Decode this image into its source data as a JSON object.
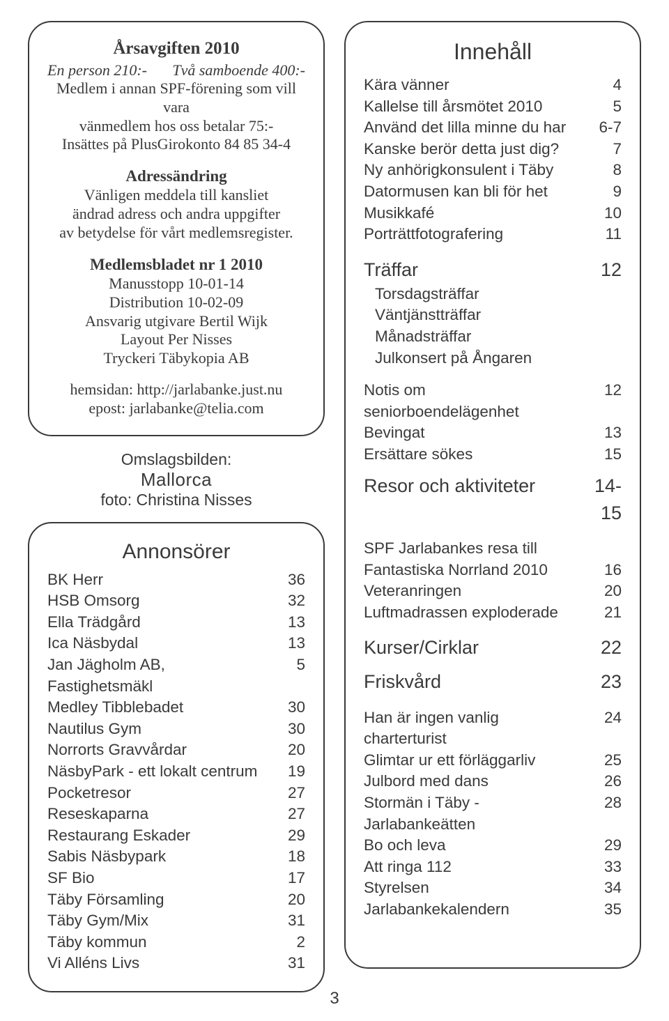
{
  "left_top": {
    "title": "Årsavgiften 2010",
    "fees": {
      "left": "En person 210:-",
      "right": "Två samboende 400:-"
    },
    "member_lines": [
      "Medlem i annan SPF-förening som vill vara",
      "vänmedlem hos oss betalar 75:-",
      "Insättes på PlusGirokonto 84 85 34-4"
    ],
    "address_title": "Adressändring",
    "address_lines": [
      "Vänligen meddela till kansliet",
      "ändrad adress och andra uppgifter",
      "av betydelse för vårt medlemsregister."
    ],
    "issue_title": "Medlemsbladet nr 1  2010",
    "issue_lines": [
      "Manusstopp 10-01-14",
      "Distribution  10-02-09",
      "Ansvarig utgivare Bertil Wijk",
      "Layout Per Nisses",
      "Tryckeri Täbykopia AB"
    ],
    "web": "hemsidan: http://jarlabanke.just.nu",
    "email": "epost: jarlabanke@telia.com"
  },
  "caption": {
    "l1": "Omslagsbilden:",
    "l2": "Mallorca",
    "l3": "foto: Christina Nisses"
  },
  "advertisers": {
    "title": "Annonsörer",
    "items": [
      {
        "label": "BK Herr",
        "page": "36"
      },
      {
        "label": "HSB Omsorg",
        "page": "32"
      },
      {
        "label": "Ella Trädgård",
        "page": "13"
      },
      {
        "label": "Ica Näsbydal",
        "page": "13"
      },
      {
        "label": "Jan Jägholm AB, Fastighetsmäkl",
        "page": "5"
      },
      {
        "label": "Medley Tibblebadet",
        "page": "30"
      },
      {
        "label": "Nautilus Gym",
        "page": "30"
      },
      {
        "label": "Norrorts Gravvårdar",
        "page": "20"
      },
      {
        "label": "NäsbyPark - ett lokalt centrum",
        "page": "19"
      },
      {
        "label": "Pocketresor",
        "page": "27"
      },
      {
        "label": "Reseskaparna",
        "page": "27"
      },
      {
        "label": "Restaurang Eskader",
        "page": "29"
      },
      {
        "label": "Sabis Näsbypark",
        "page": "18"
      },
      {
        "label": "SF Bio",
        "page": "17"
      },
      {
        "label": "Täby Församling",
        "page": "20"
      },
      {
        "label": "Täby Gym/Mix",
        "page": "31"
      },
      {
        "label": "Täby kommun",
        "page": "2"
      },
      {
        "label": "Vi Alléns Livs",
        "page": "31"
      }
    ]
  },
  "toc": {
    "title": "Innehåll",
    "section1": [
      {
        "label": "Kära vänner",
        "page": "4"
      },
      {
        "label": "Kallelse till årsmötet 2010",
        "page": "5"
      },
      {
        "label": "Använd det lilla minne du har",
        "page": "6-7"
      },
      {
        "label": "Kanske berör detta just dig?",
        "page": "7"
      },
      {
        "label": "Ny anhörigkonsulent i Täby",
        "page": "8"
      },
      {
        "label": "Datormusen kan bli för het",
        "page": "9"
      },
      {
        "label": "Musikkafé",
        "page": "10"
      },
      {
        "label": "Porträttfotografering",
        "page": "11"
      }
    ],
    "traffar_head": {
      "label": "Träffar",
      "page": "12"
    },
    "traffar_items": [
      "Torsdagsträffar",
      "Väntjänstträffar",
      "Månadsträffar",
      "Julkonsert på Ångaren"
    ],
    "section2": [
      {
        "label": "Notis om seniorboendelägenhet",
        "page": "12"
      },
      {
        "label": "Bevingat",
        "page": "13"
      },
      {
        "label": "Ersättare sökes",
        "page": "15"
      }
    ],
    "resor_head": {
      "label": "Resor och aktiviteter",
      "page": "14-15"
    },
    "section3": [
      {
        "label": "SPF Jarlabankes resa till",
        "page": ""
      },
      {
        "label": "Fantastiska Norrland 2010",
        "page": "16"
      },
      {
        "label": "Veteranringen",
        "page": "20"
      },
      {
        "label": "Luftmadrassen exploderade",
        "page": "21"
      }
    ],
    "kurser_head": {
      "label": "Kurser/Cirklar",
      "page": "22"
    },
    "frisk_head": {
      "label": "Friskvård",
      "page": "23"
    },
    "section4": [
      {
        "label": "Han är ingen vanlig charterturist",
        "page": "24"
      },
      {
        "label": "Glimtar ur ett förläggarliv",
        "page": "25"
      },
      {
        "label": "Julbord med dans",
        "page": "26"
      },
      {
        "label": "Stormän i Täby - Jarlabankeätten",
        "page": "28"
      },
      {
        "label": "Bo och leva",
        "page": "29"
      },
      {
        "label": "Att ringa 112",
        "page": "33"
      },
      {
        "label": "Styrelsen",
        "page": "34"
      },
      {
        "label": "Jarlabankekalendern",
        "page": "35"
      }
    ]
  },
  "pagenum": "3"
}
